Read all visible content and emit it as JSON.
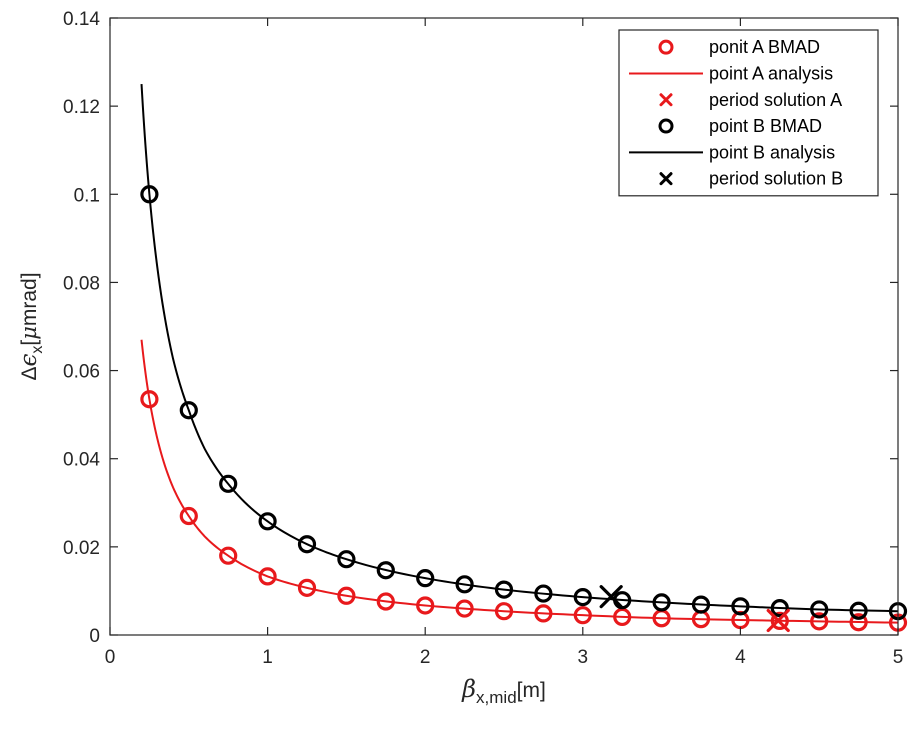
{
  "chart_data": {
    "type": "scatter",
    "title": "",
    "xlabel": {
      "symbol": "β",
      "subscript": "x,mid",
      "unit": "[m]"
    },
    "ylabel": {
      "prefix": "Δ",
      "symbol": "ϵ",
      "subscript": "x",
      "open": "[",
      "mu": "μ",
      "unit": "mrad]"
    },
    "xlim": [
      0,
      5
    ],
    "ylim": [
      0,
      0.14
    ],
    "xticks": [
      0,
      1,
      2,
      3,
      4,
      5
    ],
    "xtick_labels": [
      "0",
      "1",
      "2",
      "3",
      "4",
      "5"
    ],
    "yticks": [
      0,
      0.02,
      0.04,
      0.06,
      0.08,
      0.1,
      0.12,
      0.14
    ],
    "ytick_labels": [
      "0",
      "0.02",
      "0.04",
      "0.06",
      "0.08",
      "0.1",
      "0.12",
      "0.14"
    ],
    "grid": false,
    "legend_position": "top-right",
    "colors": {
      "a": "#e8191c",
      "b": "#000000",
      "axis": "#262626"
    },
    "series": [
      {
        "name": "ponit A BMAD",
        "kind": "circles",
        "color": "#e8191c",
        "x": [
          0.25,
          0.5,
          0.75,
          1.0,
          1.25,
          1.5,
          1.75,
          2.0,
          2.25,
          2.5,
          2.75,
          3.0,
          3.25,
          3.5,
          3.75,
          4.0,
          4.25,
          4.5,
          4.75,
          5.0
        ],
        "y": [
          0.0535,
          0.027,
          0.018,
          0.0133,
          0.0107,
          0.0089,
          0.0076,
          0.0067,
          0.006,
          0.0054,
          0.0049,
          0.0045,
          0.0041,
          0.0038,
          0.0036,
          0.0034,
          0.0032,
          0.0031,
          0.0029,
          0.0028
        ]
      },
      {
        "name": "point A analysis",
        "kind": "line",
        "color": "#e8191c",
        "x": [
          0.2,
          0.25,
          0.3,
          0.4,
          0.5,
          0.6,
          0.75,
          1.0,
          1.25,
          1.5,
          2.0,
          2.5,
          3.0,
          3.5,
          4.0,
          4.5,
          5.0
        ],
        "y": [
          0.067,
          0.0535,
          0.0446,
          0.0335,
          0.027,
          0.0224,
          0.018,
          0.0133,
          0.0107,
          0.0089,
          0.0067,
          0.0054,
          0.0045,
          0.0038,
          0.0034,
          0.0031,
          0.0028
        ]
      },
      {
        "name": "period solution A",
        "kind": "cross",
        "color": "#e8191c",
        "x": [
          4.24
        ],
        "y": [
          0.0033
        ]
      },
      {
        "name": "point B BMAD",
        "kind": "circles",
        "color": "#000000",
        "x": [
          0.25,
          0.5,
          0.75,
          1.0,
          1.25,
          1.5,
          1.75,
          2.0,
          2.25,
          2.5,
          2.75,
          3.0,
          3.25,
          3.5,
          3.75,
          4.0,
          4.25,
          4.5,
          4.75,
          5.0
        ],
        "y": [
          0.1,
          0.051,
          0.0343,
          0.0258,
          0.0206,
          0.0172,
          0.0147,
          0.0129,
          0.0115,
          0.0103,
          0.0094,
          0.0086,
          0.0079,
          0.0074,
          0.0069,
          0.0065,
          0.0061,
          0.0058,
          0.0055,
          0.0054
        ]
      },
      {
        "name": "point B analysis",
        "kind": "line",
        "color": "#000000",
        "x": [
          0.2,
          0.25,
          0.3,
          0.4,
          0.5,
          0.6,
          0.75,
          1.0,
          1.25,
          1.5,
          2.0,
          2.5,
          3.0,
          3.5,
          4.0,
          4.5,
          5.0
        ],
        "y": [
          0.125,
          0.1,
          0.0835,
          0.0627,
          0.051,
          0.0423,
          0.0343,
          0.0258,
          0.0206,
          0.0172,
          0.0129,
          0.0103,
          0.0086,
          0.0074,
          0.0065,
          0.0058,
          0.0054
        ]
      },
      {
        "name": "period solution B",
        "kind": "cross",
        "color": "#000000",
        "x": [
          3.18
        ],
        "y": [
          0.0087
        ]
      }
    ]
  }
}
